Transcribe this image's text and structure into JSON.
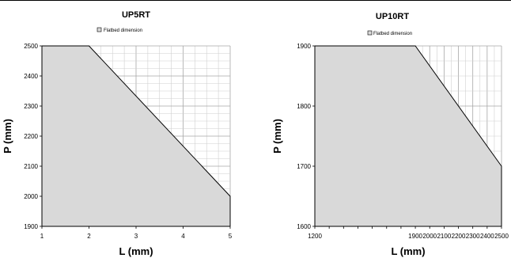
{
  "chart_data": [
    {
      "type": "area",
      "title": "UP5RT",
      "legend": "Flatbed dimension",
      "legend_placement": "top-center",
      "xlabel": "L (mm)",
      "ylabel": "P (mm)",
      "xlim": [
        1,
        5
      ],
      "ylim": [
        1900,
        2500
      ],
      "xticks": [
        "1",
        "2",
        "3",
        "4",
        "5"
      ],
      "yticks": [
        "1900",
        "2000",
        "2100",
        "2200",
        "2300",
        "2400",
        "2500"
      ],
      "grid": true,
      "series": [
        {
          "name": "Flatbed dimension",
          "x": [
            1,
            2,
            5
          ],
          "y": [
            2500,
            2500,
            2000
          ]
        }
      ],
      "colors": {
        "fill": "#d9d9d9",
        "line": "#000000",
        "grid": "#a6a6a6"
      }
    },
    {
      "type": "area",
      "title": "UP10RT",
      "legend": "Flatbed dimension",
      "legend_placement": "top-center",
      "xlabel": "L (mm)",
      "ylabel": "P (mm)",
      "xlim": [
        1200,
        2500
      ],
      "ylim": [
        1600,
        1900
      ],
      "xticks": [
        "1200",
        "1300",
        "1400",
        "1500",
        "1600",
        "1700",
        "1800",
        "1900",
        "2000",
        "2100",
        "2200",
        "2300",
        "2400",
        "2500"
      ],
      "yticks": [
        "1600",
        "1700",
        "1800",
        "1900"
      ],
      "visible_xtick_labels": [
        "1200",
        "1900",
        "2000",
        "2100",
        "2200",
        "2300",
        "2400",
        "2500"
      ],
      "grid": true,
      "series": [
        {
          "name": "Flatbed dimension",
          "x": [
            1200,
            1900,
            2500
          ],
          "y": [
            1900,
            1900,
            1700
          ]
        }
      ],
      "colors": {
        "fill": "#d9d9d9",
        "line": "#000000",
        "grid": "#a6a6a6"
      }
    }
  ]
}
